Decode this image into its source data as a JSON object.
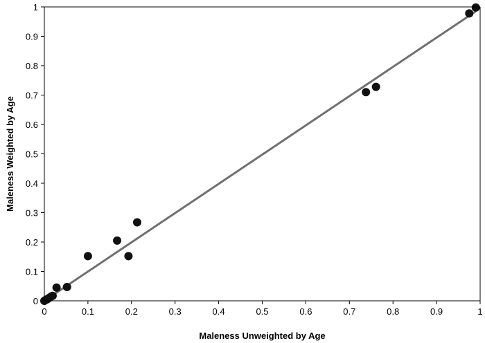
{
  "chart_data": {
    "type": "scatter",
    "title": "",
    "xlabel": "Maleness Unweighted by Age",
    "ylabel": "Maleness Weighted by Age",
    "xlim": [
      0,
      1
    ],
    "ylim": [
      0,
      1
    ],
    "x_ticks": [
      "0",
      "0.1",
      "0.2",
      "0.3",
      "0.4",
      "0.5",
      "0.6",
      "0.7",
      "0.8",
      "0.9",
      "1"
    ],
    "y_ticks": [
      "0",
      "0.1",
      "0.2",
      "0.3",
      "0.4",
      "0.5",
      "0.6",
      "0.7",
      "0.8",
      "0.9",
      "1"
    ],
    "grid": false,
    "legend": "none",
    "colors": {
      "points": "#111111",
      "trendline": "#707070",
      "axes": "#000000"
    },
    "points": [
      {
        "x": 0.0,
        "y": 0.0
      },
      {
        "x": 0.003,
        "y": 0.003
      },
      {
        "x": 0.006,
        "y": 0.005
      },
      {
        "x": 0.009,
        "y": 0.008
      },
      {
        "x": 0.012,
        "y": 0.011
      },
      {
        "x": 0.016,
        "y": 0.015
      },
      {
        "x": 0.019,
        "y": 0.017
      },
      {
        "x": 0.028,
        "y": 0.045
      },
      {
        "x": 0.052,
        "y": 0.047
      },
      {
        "x": 0.1,
        "y": 0.152
      },
      {
        "x": 0.167,
        "y": 0.205
      },
      {
        "x": 0.193,
        "y": 0.152
      },
      {
        "x": 0.213,
        "y": 0.267
      },
      {
        "x": 0.738,
        "y": 0.71
      },
      {
        "x": 0.761,
        "y": 0.728
      },
      {
        "x": 0.975,
        "y": 0.978
      },
      {
        "x": 0.99,
        "y": 0.998
      }
    ],
    "trendline": {
      "x": [
        0,
        0.99
      ],
      "y": [
        0,
        0.985
      ]
    }
  }
}
